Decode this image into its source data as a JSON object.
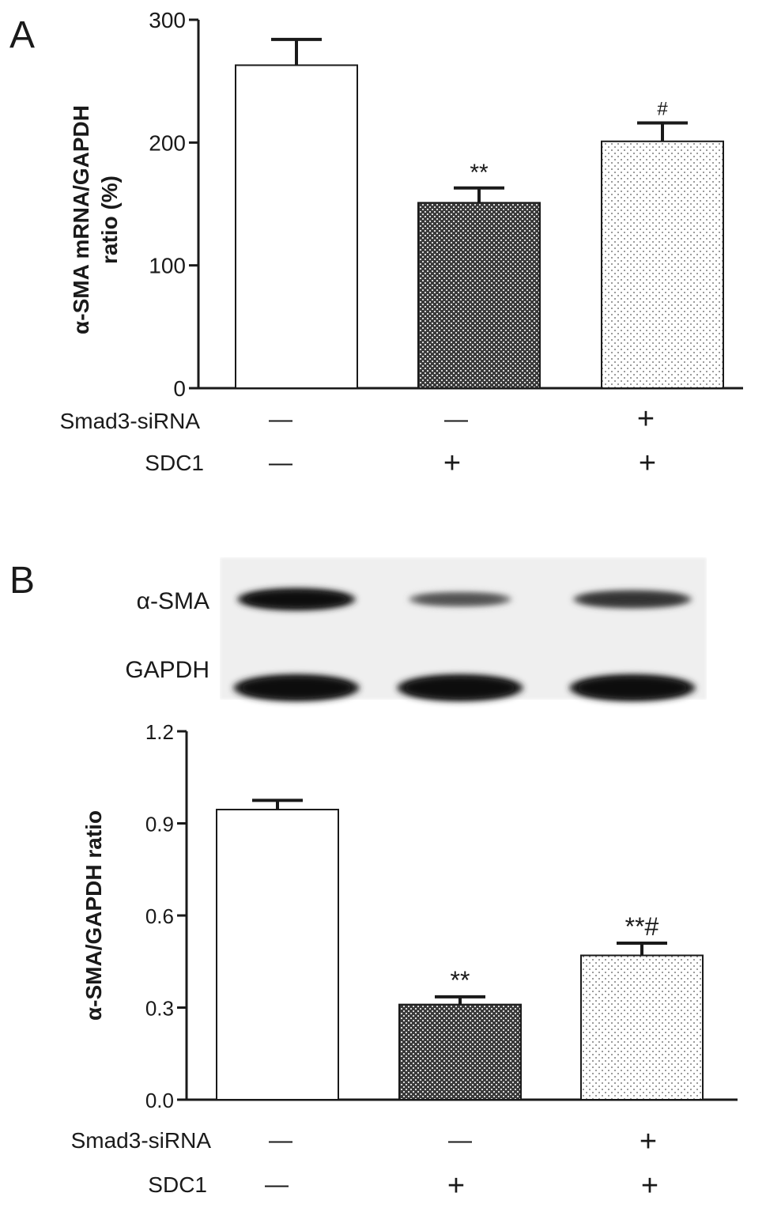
{
  "panels": {
    "A": {
      "letter": "A"
    },
    "B": {
      "letter": "B"
    }
  },
  "blot": {
    "rows": [
      {
        "label": "α-SMA",
        "intensity": [
          1.0,
          0.55,
          0.75
        ]
      },
      {
        "label": "GAPDH",
        "intensity": [
          1.0,
          1.0,
          1.0
        ]
      }
    ]
  },
  "conditions": {
    "rows": [
      {
        "label": "Smad3-siRNA",
        "values": [
          "—",
          "—",
          "+"
        ]
      },
      {
        "label": "SDC1",
        "values": [
          "—",
          "+",
          "+"
        ]
      }
    ]
  },
  "chart_data": [
    {
      "type": "bar",
      "panel": "A",
      "title": "",
      "ylabel": "α-SMA mRNA/GAPDH ratio (%)",
      "ylim": [
        0,
        300
      ],
      "yticks": [
        "0",
        "100",
        "200",
        "300"
      ],
      "categories": [
        "Smad3-siRNA − / SDC1 −",
        "Smad3-siRNA − / SDC1 +",
        "Smad3-siRNA + / SDC1 +"
      ],
      "values": [
        263,
        151,
        201
      ],
      "errors": [
        21,
        12,
        15
      ],
      "annotations": [
        "",
        "**",
        "#"
      ],
      "fills": [
        "white",
        "crosshatch",
        "dots"
      ]
    },
    {
      "type": "bar",
      "panel": "B",
      "title": "",
      "ylabel": "α-SMA/GAPDH ratio",
      "ylim": [
        0,
        1.2
      ],
      "yticks": [
        "0.0",
        "0.3",
        "0.6",
        "0.9",
        "1.2"
      ],
      "categories": [
        "Smad3-siRNA − / SDC1 −",
        "Smad3-siRNA − / SDC1 +",
        "Smad3-siRNA + / SDC1 +"
      ],
      "values": [
        0.945,
        0.31,
        0.47
      ],
      "errors": [
        0.03,
        0.025,
        0.04
      ],
      "annotations": [
        "",
        "**",
        "**#"
      ],
      "fills": [
        "white",
        "crosshatch",
        "dots"
      ]
    }
  ]
}
